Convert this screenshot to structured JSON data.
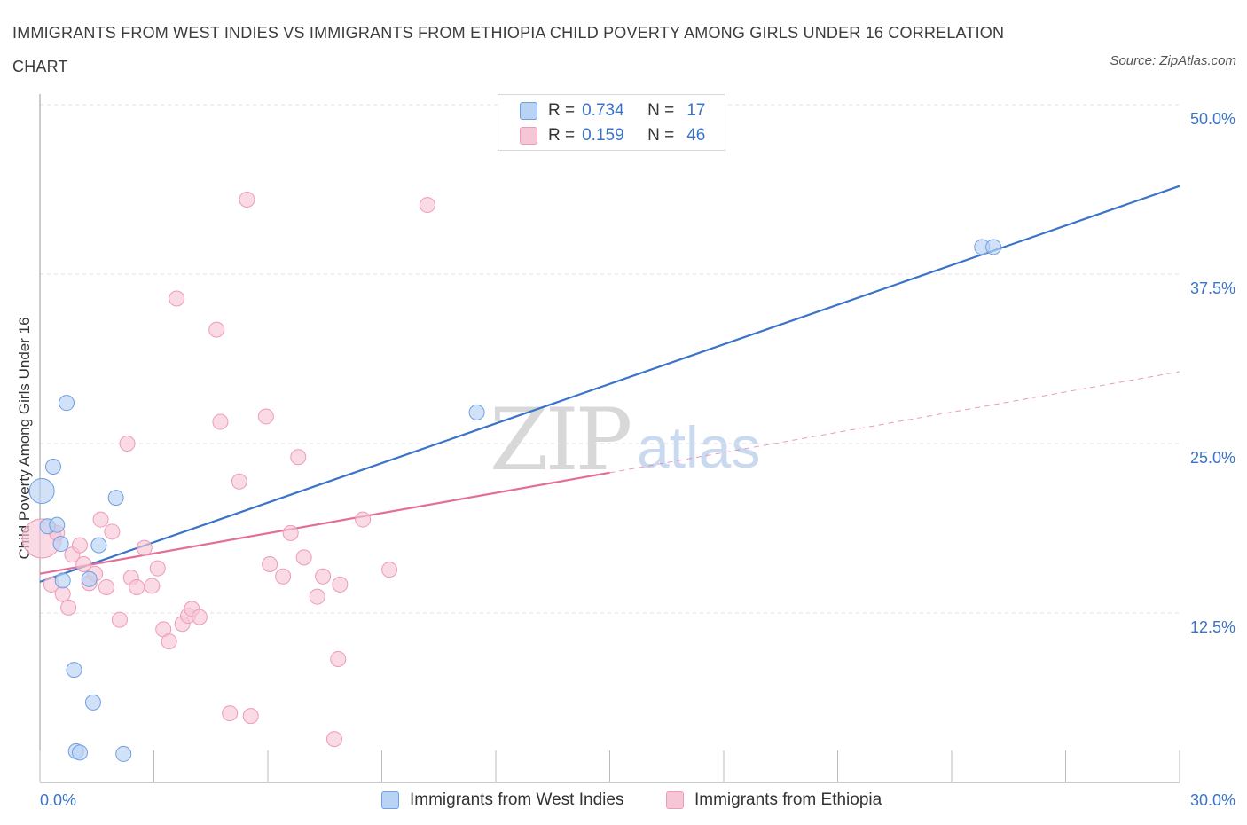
{
  "header": {
    "title": "IMMIGRANTS FROM WEST INDIES VS IMMIGRANTS FROM ETHIOPIA CHILD POVERTY AMONG GIRLS UNDER 16 CORRELATION CHART",
    "source": "Source: ZipAtlas.com"
  },
  "watermark": {
    "zip": "ZIP",
    "atlas": "atlas"
  },
  "legend": {
    "rows": [
      {
        "r_label": "R =",
        "r_value": "0.734",
        "n_label": "N =",
        "n_value": "17"
      },
      {
        "r_label": "R =",
        "r_value": "0.159",
        "n_label": "N =",
        "n_value": "46"
      }
    ]
  },
  "colors": {
    "blue": "#3a74c9",
    "blue_fill": "#b9d3f4",
    "blue_stroke": "#6f9fe0",
    "pink": "#e36e9a",
    "pink_fill": "#f7c6d6",
    "pink_stroke": "#ef9ab8",
    "grid": "#e2e2e2",
    "axis_text": "#3a74c9"
  },
  "chart_data": {
    "type": "scatter",
    "title": "IMMIGRANTS FROM WEST INDIES VS IMMIGRANTS FROM ETHIOPIA CHILD POVERTY AMONG GIRLS UNDER 16 CORRELATION CHART",
    "xlabel": "",
    "ylabel": "Child Poverty Among Girls Under 16",
    "xlim": [
      0,
      30
    ],
    "ylim": [
      0,
      50
    ],
    "x_tick_labels": [
      {
        "value": 0,
        "label": "0.0%"
      },
      {
        "value": 30,
        "label": "30.0%"
      }
    ],
    "y_tick_labels": [
      {
        "value": 12.5,
        "label": "12.5%"
      },
      {
        "value": 25,
        "label": "25.0%"
      },
      {
        "value": 37.5,
        "label": "37.5%"
      },
      {
        "value": 50,
        "label": "50.0%"
      }
    ],
    "grid": true,
    "series": [
      {
        "name": "Immigrants from West Indies",
        "color": "blue",
        "r": 0.734,
        "n": 17,
        "points": [
          [
            0.05,
            21.5,
            2
          ],
          [
            0.2,
            18.9,
            1
          ],
          [
            0.35,
            23.3,
            1
          ],
          [
            0.45,
            19.0,
            1
          ],
          [
            0.55,
            17.6,
            1
          ],
          [
            0.6,
            14.9,
            1
          ],
          [
            0.7,
            28.0,
            1
          ],
          [
            0.9,
            8.3,
            1
          ],
          [
            0.95,
            2.3,
            1
          ],
          [
            1.05,
            2.2,
            1
          ],
          [
            1.3,
            15.0,
            1
          ],
          [
            1.4,
            5.9,
            1
          ],
          [
            1.55,
            17.5,
            1
          ],
          [
            2.0,
            21.0,
            1
          ],
          [
            2.2,
            2.1,
            1
          ],
          [
            11.5,
            27.3,
            1
          ],
          [
            24.8,
            39.5,
            1
          ],
          [
            25.1,
            39.5,
            1
          ]
        ],
        "trend": {
          "x0": 0,
          "y0": 14.8,
          "x1": 30,
          "y1": 44.0,
          "dashed_from": null
        }
      },
      {
        "name": "Immigrants from Ethiopia",
        "color": "pink",
        "r": 0.159,
        "n": 46,
        "points": [
          [
            0.05,
            18.0,
            3
          ],
          [
            0.3,
            14.6,
            1
          ],
          [
            0.45,
            18.4,
            1
          ],
          [
            0.6,
            13.9,
            1
          ],
          [
            0.75,
            12.9,
            1
          ],
          [
            0.85,
            16.8,
            1
          ],
          [
            1.05,
            17.5,
            1
          ],
          [
            1.15,
            16.1,
            1
          ],
          [
            1.3,
            14.7,
            1
          ],
          [
            1.45,
            15.4,
            1
          ],
          [
            1.6,
            19.4,
            1
          ],
          [
            1.75,
            14.4,
            1
          ],
          [
            1.9,
            18.5,
            1
          ],
          [
            2.1,
            12.0,
            1
          ],
          [
            2.3,
            25.0,
            1
          ],
          [
            2.4,
            15.1,
            1
          ],
          [
            2.55,
            14.4,
            1
          ],
          [
            2.75,
            17.3,
            1
          ],
          [
            2.95,
            14.5,
            1
          ],
          [
            3.1,
            15.8,
            1
          ],
          [
            3.25,
            11.3,
            1
          ],
          [
            3.4,
            10.4,
            1
          ],
          [
            3.6,
            35.7,
            1
          ],
          [
            3.75,
            11.7,
            1
          ],
          [
            3.9,
            12.3,
            1
          ],
          [
            4.0,
            12.8,
            1
          ],
          [
            4.2,
            12.2,
            1
          ],
          [
            4.65,
            33.4,
            1
          ],
          [
            4.75,
            26.6,
            1
          ],
          [
            5.0,
            5.1,
            1
          ],
          [
            5.25,
            22.2,
            1
          ],
          [
            5.55,
            4.9,
            1
          ],
          [
            5.45,
            43.0,
            1
          ],
          [
            5.95,
            27.0,
            1
          ],
          [
            6.05,
            16.1,
            1
          ],
          [
            6.4,
            15.2,
            1
          ],
          [
            6.6,
            18.4,
            1
          ],
          [
            6.8,
            24.0,
            1
          ],
          [
            6.95,
            16.6,
            1
          ],
          [
            7.3,
            13.7,
            1
          ],
          [
            7.45,
            15.2,
            1
          ],
          [
            7.75,
            3.2,
            1
          ],
          [
            7.85,
            9.1,
            1
          ],
          [
            7.9,
            14.6,
            1
          ],
          [
            8.5,
            19.4,
            1
          ],
          [
            9.2,
            15.7,
            1
          ],
          [
            10.2,
            42.6,
            1
          ]
        ],
        "trend": {
          "x0": 0,
          "y0": 15.4,
          "x1": 30,
          "y1": 30.3,
          "dashed_from": 15
        }
      }
    ]
  },
  "bottom_legend": {
    "items": [
      {
        "label": "Immigrants from West Indies"
      },
      {
        "label": "Immigrants from Ethiopia"
      }
    ]
  }
}
